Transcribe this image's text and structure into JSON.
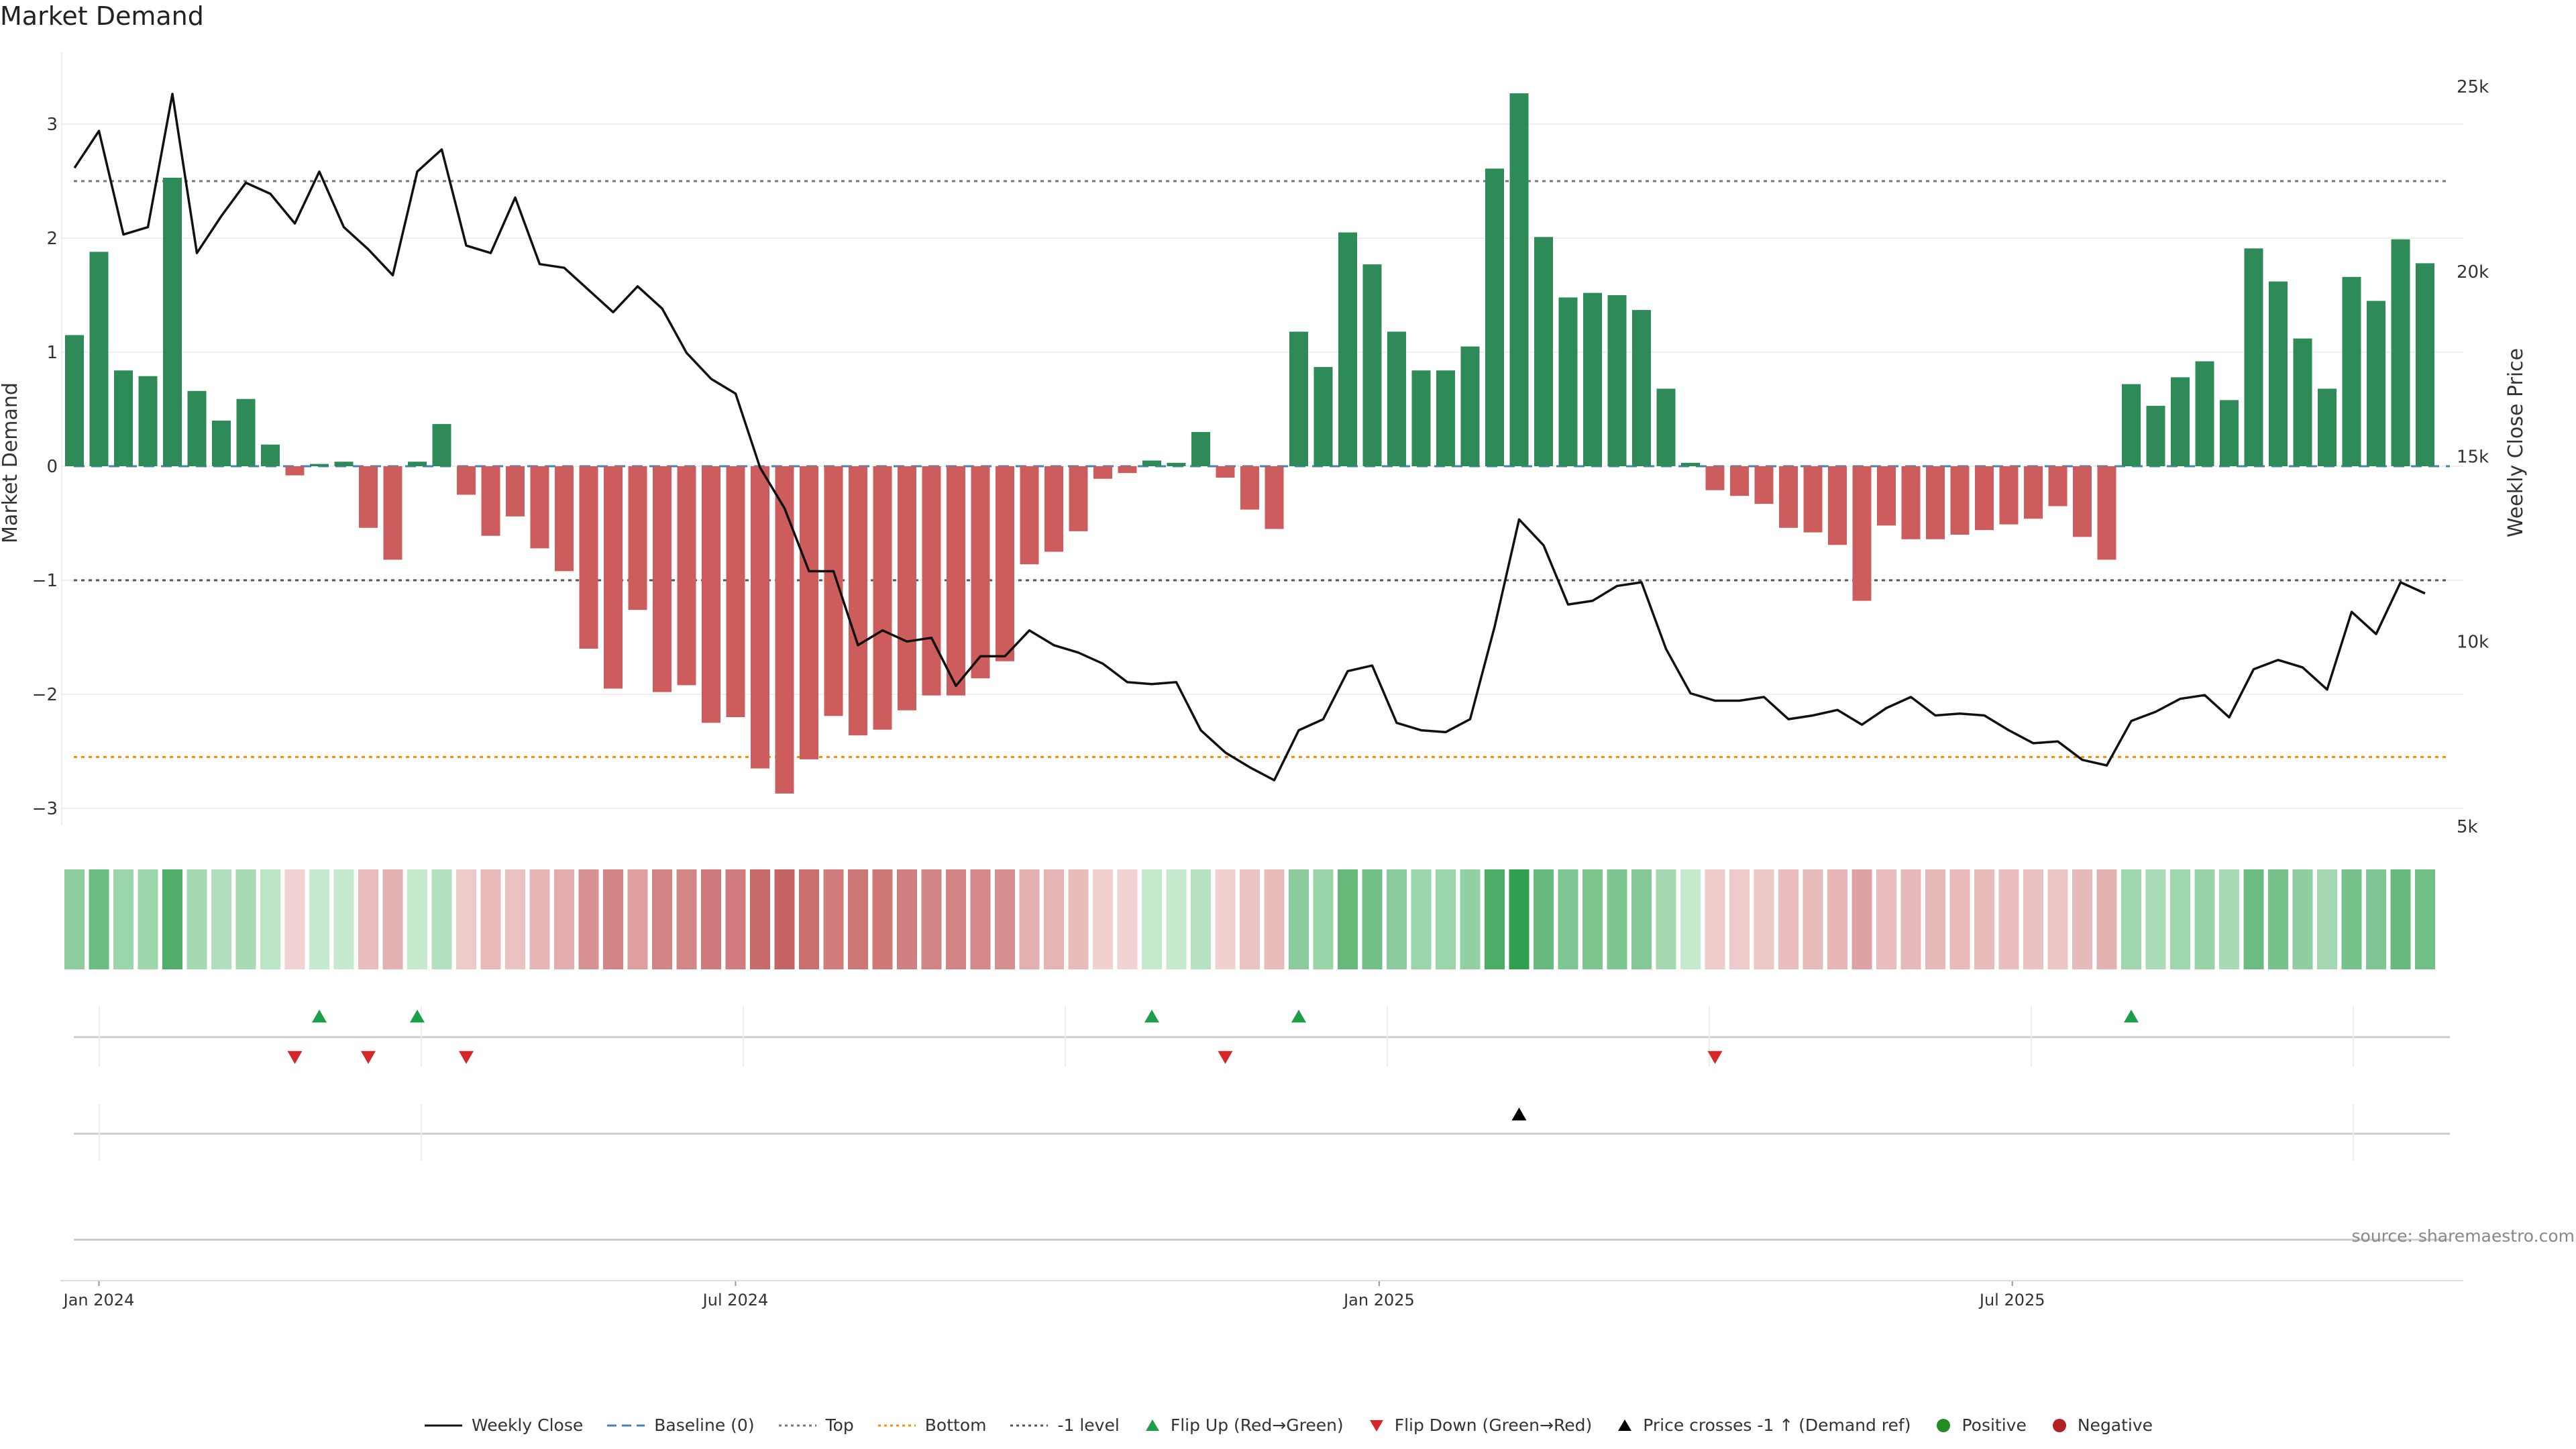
{
  "chart_data": {
    "type": "bar",
    "title": "Market Demand",
    "ylabel_left": "Market Demand",
    "ylabel_right": "Weekly Close Price",
    "y_left_ticks": [
      "3",
      "2",
      "1",
      "0",
      "−1",
      "−2",
      "−3"
    ],
    "y_left_tick_values": [
      3,
      2,
      1,
      0,
      -1,
      -2,
      -3
    ],
    "y_left_range": [
      -3.3,
      3.6
    ],
    "y_right_ticks": [
      "25k",
      "20k",
      "15k",
      "10k",
      "5k"
    ],
    "y_right_tick_values": [
      25000,
      20000,
      15000,
      10000,
      5000
    ],
    "y_right_range": [
      5000,
      25000
    ],
    "x_ticks": [
      "Jan 2024",
      "Jul 2024",
      "Jan 2025",
      "Jul 2025"
    ],
    "x_tick_dates": [
      "2024-01-01",
      "2024-07-01",
      "2025-01-01",
      "2025-07-01"
    ],
    "x_start": "2023-12-25",
    "bar_dates_step_days": 7,
    "reference_lines": {
      "baseline": 0,
      "top": 2.5,
      "bottom": -2.55,
      "minus_one": -1
    },
    "colors": {
      "positive": "#2e8b57",
      "negative": "#cd5c5c",
      "close_line": "#111111",
      "baseline": "#4682b4",
      "top": "#777777",
      "bottom": "#ff8c00",
      "minus_one": "#555555",
      "flip_up": "#1f9e4a",
      "flip_down": "#d62728",
      "cross": "#000000",
      "positive_dot": "#228b22",
      "negative_dot": "#b22222"
    },
    "demand": [
      1.15,
      1.88,
      0.84,
      0.79,
      2.53,
      0.66,
      0.4,
      0.59,
      0.19,
      -0.08,
      0.02,
      0.04,
      -0.54,
      -0.82,
      0.04,
      0.37,
      -0.25,
      -0.61,
      -0.44,
      -0.72,
      -0.92,
      -1.6,
      -1.95,
      -1.26,
      -1.98,
      -1.92,
      -2.25,
      -2.2,
      -2.65,
      -2.87,
      -2.57,
      -2.19,
      -2.36,
      -2.31,
      -2.14,
      -2.01,
      -2.01,
      -1.86,
      -1.71,
      -0.86,
      -0.75,
      -0.57,
      -0.11,
      -0.06,
      0.05,
      0.03,
      0.3,
      -0.1,
      -0.38,
      -0.55,
      1.18,
      0.87,
      2.05,
      1.77,
      1.18,
      0.84,
      0.84,
      1.05,
      2.61,
      3.27,
      2.01,
      1.48,
      1.52,
      1.5,
      1.37,
      0.68,
      0.03,
      -0.21,
      -0.26,
      -0.33,
      -0.54,
      -0.58,
      -0.69,
      -1.18,
      -0.52,
      -0.64,
      -0.64,
      -0.6,
      -0.56,
      -0.51,
      -0.46,
      -0.35,
      -0.62,
      -0.82,
      0.72,
      0.53,
      0.78,
      0.92,
      0.58,
      1.91,
      1.62,
      1.12,
      0.68,
      1.66,
      1.45,
      1.99,
      1.78
    ],
    "weekly_close": [
      22800,
      23800,
      21000,
      21200,
      24800,
      20500,
      21500,
      22400,
      22100,
      21300,
      22700,
      21200,
      20600,
      19900,
      22700,
      23300,
      20700,
      20500,
      22000,
      20200,
      20100,
      19500,
      18900,
      19600,
      19000,
      17800,
      17100,
      16700,
      14700,
      13600,
      11900,
      11900,
      9900,
      10300,
      10000,
      10100,
      8800,
      9600,
      9600,
      10300,
      9900,
      9700,
      9400,
      8900,
      8850,
      8900,
      7600,
      7000,
      6600,
      6250,
      7600,
      7900,
      9200,
      9350,
      7800,
      7600,
      7550,
      7900,
      10400,
      13300,
      12600,
      11000,
      11100,
      11500,
      11600,
      9800,
      8600,
      8400,
      8400,
      8500,
      7900,
      8000,
      8150,
      7750,
      8200,
      8500,
      8000,
      8050,
      8000,
      7600,
      7250,
      7300,
      6800,
      6650,
      7850,
      8100,
      8450,
      8550,
      7950,
      9250,
      9500,
      9300,
      8700,
      10800,
      10200,
      11600,
      11300
    ],
    "flip_up_weeks": [
      10,
      14,
      44,
      50,
      84
    ],
    "flip_down_weeks": [
      9,
      12,
      16,
      47,
      67
    ],
    "cross_up_weeks": [
      59
    ],
    "source": "source: sharemaestro.com"
  },
  "legend": [
    {
      "label": "Weekly Close",
      "symbol": "line-solid",
      "color": "#111111"
    },
    {
      "label": "Baseline (0)",
      "symbol": "line-dashed",
      "color": "#4682b4"
    },
    {
      "label": "Top",
      "symbol": "line-dotted",
      "color": "#777777"
    },
    {
      "label": "Bottom",
      "symbol": "line-dotted",
      "color": "#ff8c00"
    },
    {
      "label": "-1 level",
      "symbol": "line-dotted",
      "color": "#555555"
    },
    {
      "label": "Flip Up (Red→Green)",
      "symbol": "triangle-up",
      "color": "#1f9e4a"
    },
    {
      "label": "Flip Down (Green→Red)",
      "symbol": "triangle-down",
      "color": "#d62728"
    },
    {
      "label": "Price crosses -1 ↑ (Demand ref)",
      "symbol": "triangle-up",
      "color": "#000000"
    },
    {
      "label": "Positive",
      "symbol": "dot",
      "color": "#228b22"
    },
    {
      "label": "Negative",
      "symbol": "dot",
      "color": "#b22222"
    }
  ]
}
